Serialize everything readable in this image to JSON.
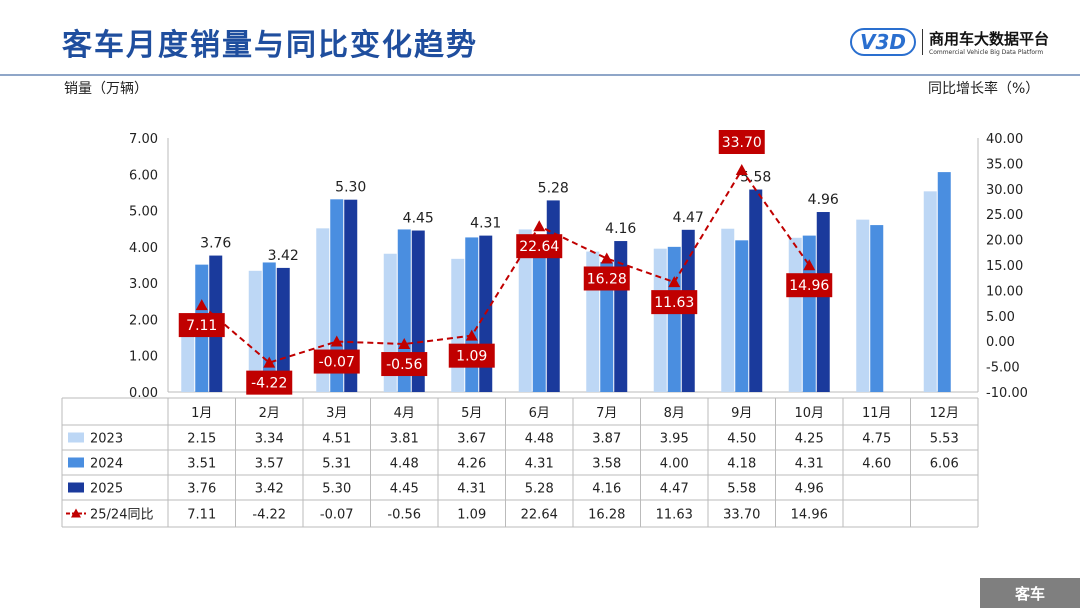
{
  "header": {
    "title": "客车月度销量与同比变化趋势",
    "logo_cn": "商用车大数据平台",
    "logo_en": "Commercial Vehicle Big Data Platform",
    "logo_mark": "V3D"
  },
  "footer_tag": "客车",
  "chart_data": {
    "type": "bar+line",
    "categories": [
      "1月",
      "2月",
      "3月",
      "4月",
      "5月",
      "6月",
      "7月",
      "8月",
      "9月",
      "10月",
      "11月",
      "12月"
    ],
    "ylabel": "销量（万辆）",
    "y2label": "同比增长率（%）",
    "ylim": [
      0,
      7
    ],
    "y2lim": [
      -10,
      40
    ],
    "yticks": [
      "0.00",
      "1.00",
      "2.00",
      "3.00",
      "4.00",
      "5.00",
      "6.00",
      "7.00"
    ],
    "y2ticks": [
      "-10.00",
      "-5.00",
      "0.00",
      "5.00",
      "10.00",
      "15.00",
      "20.00",
      "25.00",
      "30.00",
      "35.00",
      "40.00"
    ],
    "series": [
      {
        "name": "2023",
        "type": "bar",
        "color": "#bdd7f5",
        "values": [
          2.15,
          3.34,
          4.51,
          3.81,
          3.67,
          4.48,
          3.87,
          3.95,
          4.5,
          4.25,
          4.75,
          5.53
        ]
      },
      {
        "name": "2024",
        "type": "bar",
        "color": "#4a8ee0",
        "values": [
          3.51,
          3.57,
          5.31,
          4.48,
          4.26,
          4.31,
          3.58,
          4.0,
          4.18,
          4.31,
          4.6,
          6.06
        ]
      },
      {
        "name": "2025",
        "type": "bar",
        "color": "#1a3a9c",
        "values": [
          3.76,
          3.42,
          5.3,
          4.45,
          4.31,
          5.28,
          4.16,
          4.47,
          5.58,
          4.96,
          null,
          null
        ]
      },
      {
        "name": "25/24同比",
        "type": "line",
        "axis": "right",
        "color": "#c00000",
        "values": [
          7.11,
          -4.22,
          -0.07,
          -0.56,
          1.09,
          22.64,
          16.28,
          11.63,
          33.7,
          14.96,
          null,
          null
        ]
      }
    ]
  }
}
